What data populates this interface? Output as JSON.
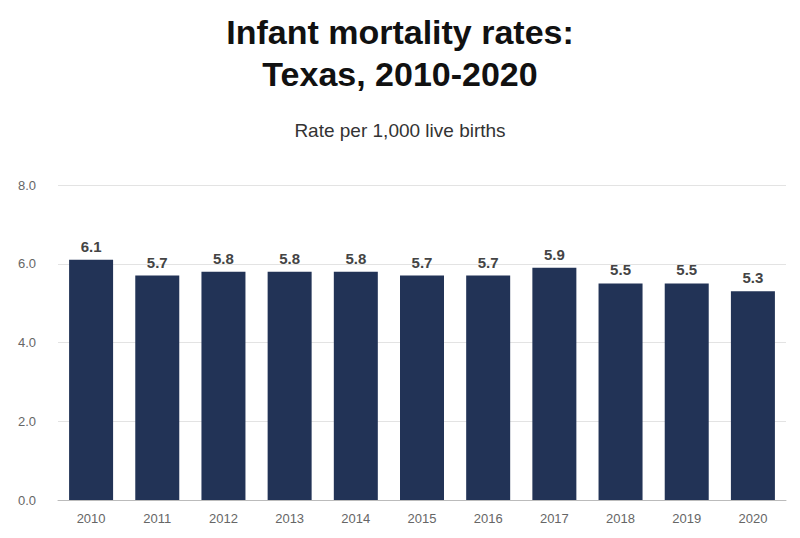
{
  "chart_data": {
    "type": "bar",
    "title": "Infant mortality rates:\nTexas, 2010-2020",
    "subtitle": "Rate per 1,000 live births",
    "categories": [
      "2010",
      "2011",
      "2012",
      "2013",
      "2014",
      "2015",
      "2016",
      "2017",
      "2018",
      "2019",
      "2020"
    ],
    "values": [
      6.1,
      5.7,
      5.8,
      5.8,
      5.8,
      5.7,
      5.7,
      5.9,
      5.5,
      5.5,
      5.3
    ],
    "color": "#223356",
    "ylim": [
      0,
      8
    ],
    "yticks": [
      {
        "value": 0,
        "label": "0.0"
      },
      {
        "value": 2,
        "label": "2.0"
      },
      {
        "value": 4,
        "label": "4.0"
      },
      {
        "value": 6,
        "label": "6.0"
      },
      {
        "value": 8,
        "label": "8.0"
      }
    ],
    "grid": true,
    "data_labels": true
  }
}
